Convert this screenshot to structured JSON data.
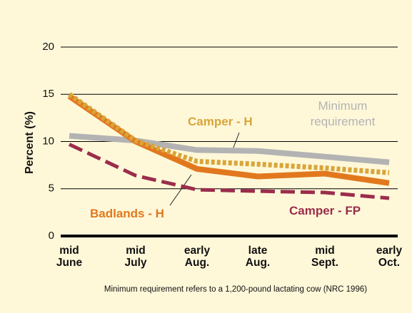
{
  "chart_data": {
    "type": "line",
    "categories": [
      [
        "mid",
        "June"
      ],
      [
        "mid",
        "July"
      ],
      [
        "early",
        "Aug."
      ],
      [
        "late",
        "Aug."
      ],
      [
        "mid",
        "Sept."
      ],
      [
        "early",
        "Oct."
      ]
    ],
    "y_label": "Percent (%)",
    "ylim": [
      0,
      20
    ],
    "yticks": [
      0,
      5,
      10,
      15,
      20
    ],
    "grid": true,
    "series": [
      {
        "name": "Minimum requirement",
        "color": "#b3b3b3",
        "style": "solid",
        "values": [
          10.6,
          10.1,
          9.1,
          9.0,
          8.4,
          7.8
        ]
      },
      {
        "name": "Badlands - H",
        "color": "#e2781e",
        "style": "solid",
        "values": [
          14.8,
          10.0,
          7.1,
          6.3,
          6.6,
          5.6
        ]
      },
      {
        "name": "Camper - H",
        "color": "#d9a53a",
        "style": "dotted",
        "values": [
          15.0,
          10.1,
          7.9,
          7.6,
          7.2,
          6.7
        ]
      },
      {
        "name": "Camper - FP",
        "color": "#9b2d4b",
        "style": "dashed",
        "values": [
          9.7,
          6.4,
          4.9,
          4.75,
          4.6,
          4.0
        ]
      }
    ],
    "footnote": "Minimum requirement refers to a 1,200-pound lactating cow (NRC 1996)"
  }
}
